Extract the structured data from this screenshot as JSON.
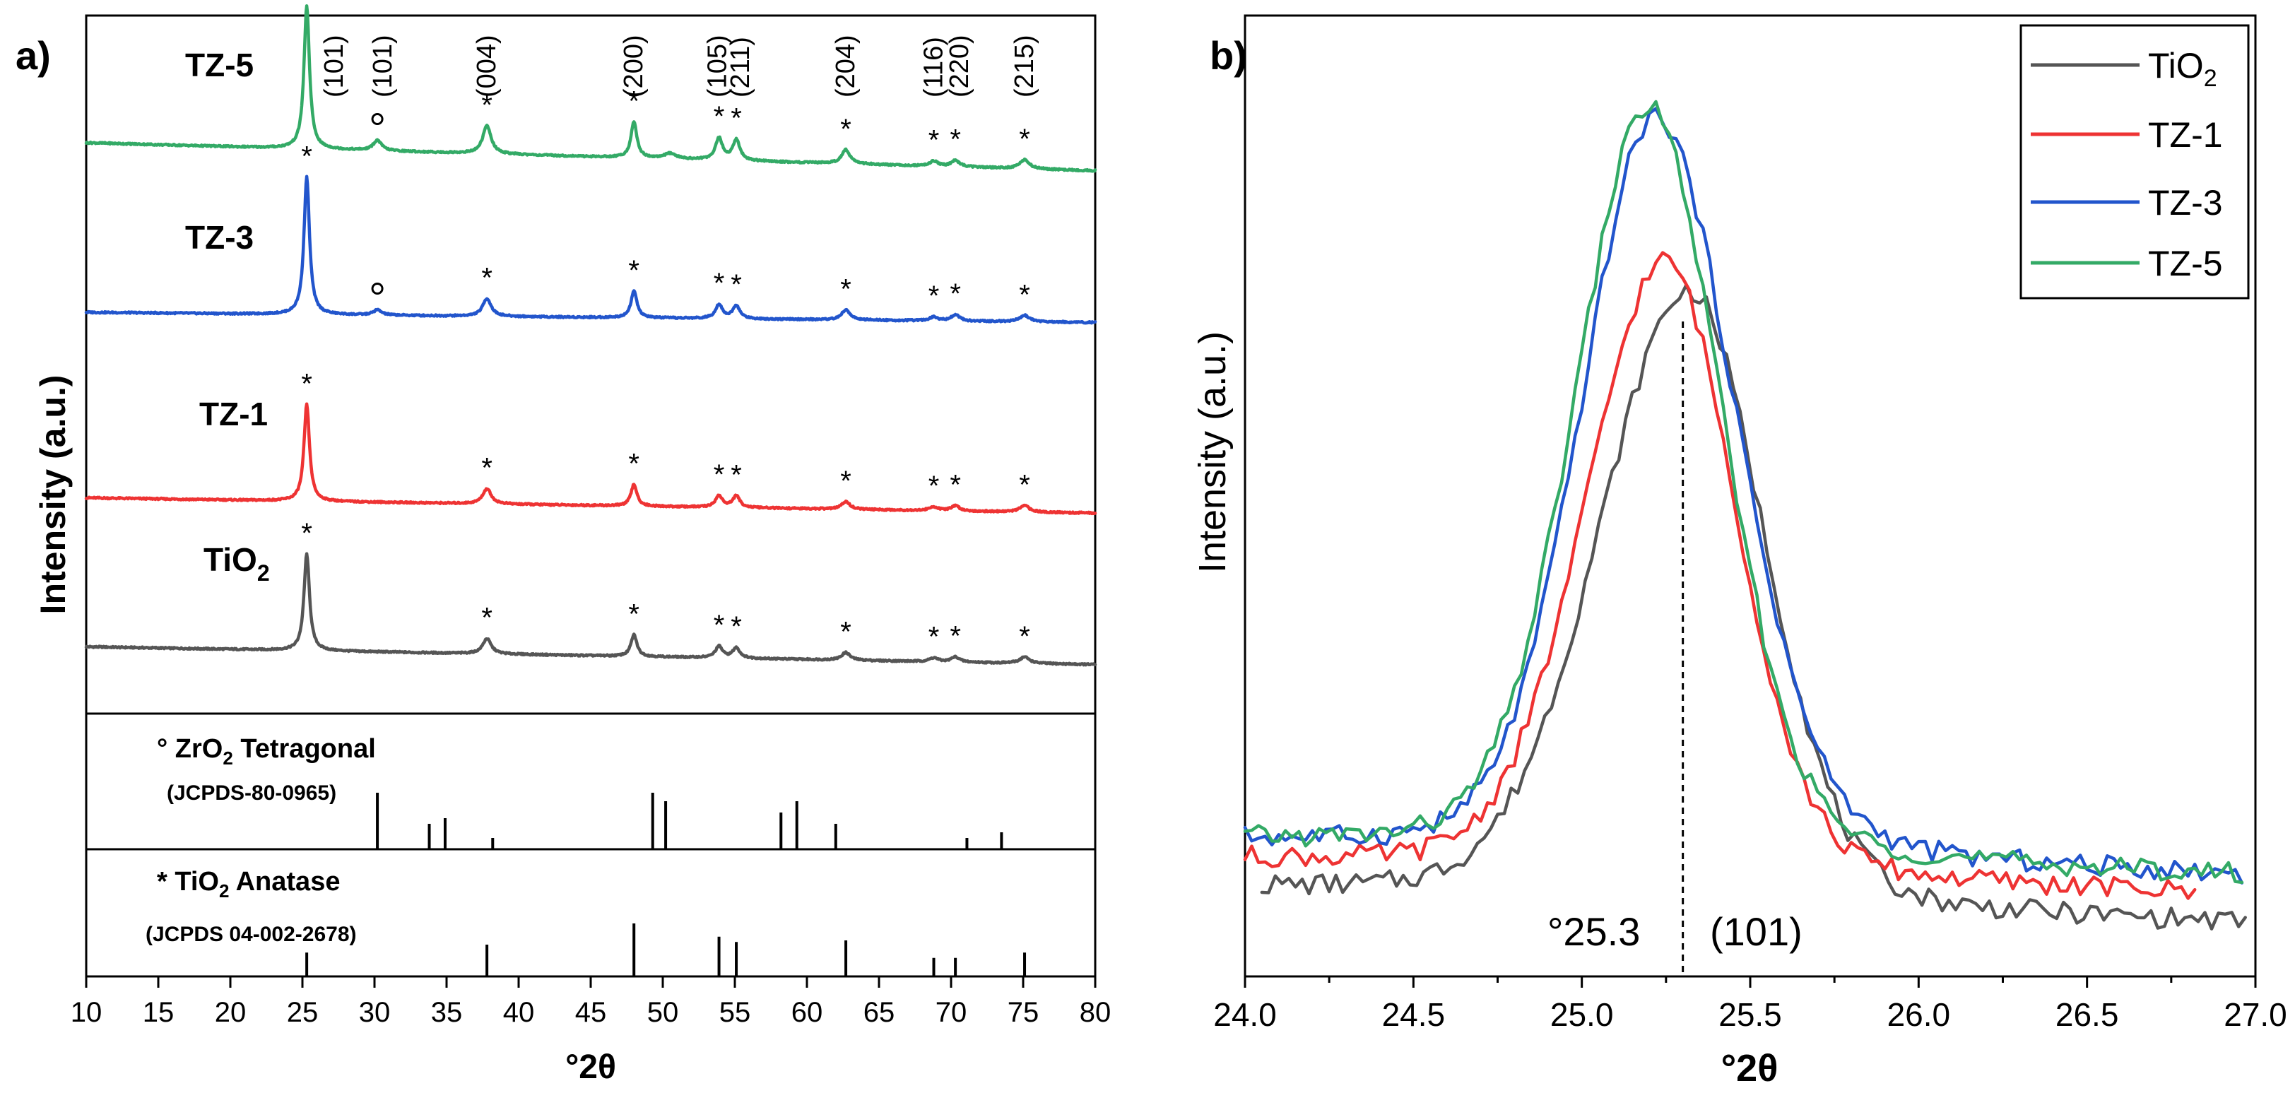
{
  "chart_data": [
    {
      "panel": "a)",
      "type": "line",
      "xlabel": "°2θ",
      "ylabel": "Intensity (a.u.)",
      "xlim": [
        10,
        80
      ],
      "xticks": [
        10,
        15,
        20,
        25,
        30,
        35,
        40,
        45,
        50,
        55,
        60,
        65,
        70,
        75,
        80
      ],
      "ylim": [
        0,
        4
      ],
      "series": [
        {
          "name": "TiO",
          "sub": "2",
          "color": "#555555",
          "offset": 0.0,
          "base": [
            0.22,
            0.14
          ],
          "peaks": [
            [
              25.3,
              0.76,
              0.23
            ],
            [
              37.8,
              0.12,
              0.35
            ],
            [
              48.0,
              0.17,
              0.25
            ],
            [
              53.9,
              0.09,
              0.3
            ],
            [
              55.1,
              0.08,
              0.3
            ],
            [
              62.7,
              0.06,
              0.35
            ],
            [
              68.8,
              0.03,
              0.35
            ],
            [
              70.3,
              0.04,
              0.35
            ],
            [
              75.1,
              0.05,
              0.4
            ]
          ]
        },
        {
          "name": "TZ-1",
          "sub": "",
          "color": "#ee3333",
          "offset": 1.0,
          "base": [
            0.28,
            0.12
          ],
          "peaks": [
            [
              25.3,
              0.76,
              0.23
            ],
            [
              37.8,
              0.12,
              0.35
            ],
            [
              48.0,
              0.17,
              0.25
            ],
            [
              53.9,
              0.09,
              0.3
            ],
            [
              55.1,
              0.09,
              0.3
            ],
            [
              62.7,
              0.06,
              0.35
            ],
            [
              68.8,
              0.03,
              0.35
            ],
            [
              70.3,
              0.04,
              0.35
            ],
            [
              75.1,
              0.05,
              0.4
            ]
          ]
        },
        {
          "name": "TZ-3",
          "sub": "",
          "color": "#2255cc",
          "offset": 2.0,
          "base": [
            0.35,
            0.08
          ],
          "peaks": [
            [
              25.3,
              1.08,
              0.23
            ],
            [
              30.2,
              0.04,
              0.35
            ],
            [
              37.8,
              0.14,
              0.35
            ],
            [
              48.0,
              0.21,
              0.25
            ],
            [
              53.9,
              0.11,
              0.3
            ],
            [
              55.1,
              0.1,
              0.3
            ],
            [
              62.7,
              0.08,
              0.35
            ],
            [
              68.8,
              0.03,
              0.35
            ],
            [
              70.3,
              0.05,
              0.35
            ],
            [
              75.1,
              0.05,
              0.4
            ]
          ]
        },
        {
          "name": "TZ-5",
          "sub": "",
          "color": "#33aa66",
          "offset": 3.0,
          "base": [
            0.5,
            0.22
          ],
          "peaks": [
            [
              25.3,
              1.12,
              0.23
            ],
            [
              30.2,
              0.08,
              0.35
            ],
            [
              37.8,
              0.22,
              0.35
            ],
            [
              48.0,
              0.28,
              0.25
            ],
            [
              50.5,
              0.04,
              0.5
            ],
            [
              53.9,
              0.17,
              0.3
            ],
            [
              55.1,
              0.16,
              0.3
            ],
            [
              62.7,
              0.11,
              0.35
            ],
            [
              68.8,
              0.04,
              0.35
            ],
            [
              70.3,
              0.05,
              0.35
            ],
            [
              75.1,
              0.07,
              0.4
            ]
          ]
        }
      ],
      "anatase_peak_positions": [
        25.3,
        37.8,
        48.0,
        53.9,
        55.1,
        62.7,
        68.8,
        70.3,
        75.1
      ],
      "tetragonal_peak_position": 30.2,
      "miller_labels": [
        {
          "x": 27.2,
          "label": "(101)"
        },
        {
          "x": 30.6,
          "label": "(101)"
        },
        {
          "x": 37.8,
          "label": "(004)"
        },
        {
          "x": 48.0,
          "label": "(200)"
        },
        {
          "x": 53.8,
          "label": "(105)"
        },
        {
          "x": 55.4,
          "label": "(211)"
        },
        {
          "x": 62.7,
          "label": "(204)"
        },
        {
          "x": 68.8,
          "label": "(116)"
        },
        {
          "x": 70.6,
          "label": "(220)"
        },
        {
          "x": 75.1,
          "label": "(215)"
        }
      ],
      "reference_zro2": {
        "title": "° ZrO",
        "title_sub": "2",
        "title_rest": " Tetragonal",
        "code": "(JCPDS-80-0965)",
        "bars": [
          [
            30.2,
            1.0
          ],
          [
            33.8,
            0.45
          ],
          [
            34.9,
            0.55
          ],
          [
            38.2,
            0.2
          ],
          [
            49.3,
            1.0
          ],
          [
            50.2,
            0.85
          ],
          [
            58.2,
            0.65
          ],
          [
            59.3,
            0.85
          ],
          [
            62.0,
            0.45
          ],
          [
            71.1,
            0.2
          ],
          [
            73.5,
            0.3
          ]
        ]
      },
      "reference_tio2": {
        "title": "* TiO",
        "title_sub": "2",
        "title_rest": " Anatase",
        "code": "(JCPDS 04-002-2678)",
        "bars": [
          [
            25.3,
            0.45
          ],
          [
            37.8,
            0.6
          ],
          [
            48.0,
            1.0
          ],
          [
            53.9,
            0.75
          ],
          [
            55.1,
            0.65
          ],
          [
            62.7,
            0.68
          ],
          [
            68.8,
            0.35
          ],
          [
            70.3,
            0.35
          ],
          [
            75.1,
            0.45
          ]
        ]
      }
    },
    {
      "panel": "b)",
      "type": "line",
      "xlabel": "°2θ",
      "ylabel": "Intensity (a.u.)",
      "xlim": [
        24.0,
        27.0
      ],
      "xticks": [
        24.0,
        24.5,
        25.0,
        25.5,
        26.0,
        26.5,
        27.0
      ],
      "ylim": [
        0,
        1
      ],
      "series": [
        {
          "name": "TiO",
          "sub": "2",
          "color": "#555555",
          "center": 25.32,
          "height": 0.64,
          "baseline": 0.09,
          "wl": 0.34,
          "wr": 0.28
        },
        {
          "name": "TZ-1",
          "sub": "",
          "color": "#ee3333",
          "center": 25.25,
          "height": 0.64,
          "baseline": 0.12,
          "wl": 0.3,
          "wr": 0.26
        },
        {
          "name": "TZ-3",
          "sub": "",
          "color": "#2255cc",
          "center": 25.22,
          "height": 0.77,
          "baseline": 0.14,
          "wl": 0.28,
          "wr": 0.3
        },
        {
          "name": "TZ-5",
          "sub": "",
          "color": "#33aa66",
          "center": 25.2,
          "height": 0.78,
          "baseline": 0.14,
          "wl": 0.28,
          "wr": 0.27
        }
      ],
      "peak_marker": 25.3,
      "peak_label": "°25.3",
      "plane_label": "(101)",
      "legend_position": "top-right"
    }
  ]
}
